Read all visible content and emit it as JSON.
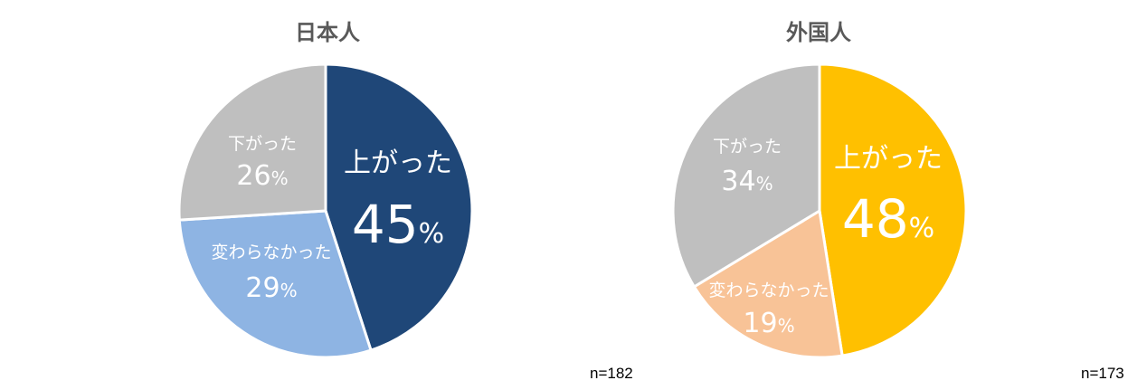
{
  "chart_data": [
    {
      "type": "pie",
      "title": "日本人",
      "n_label": "n=182",
      "slices": [
        {
          "label": "上がった",
          "value": 45,
          "color": "#1F4778"
        },
        {
          "label": "変わらなかった",
          "value": 29,
          "color": "#8EB4E3"
        },
        {
          "label": "下がった",
          "value": 26,
          "color": "#BFBFBF"
        }
      ]
    },
    {
      "type": "pie",
      "title": "外国人",
      "n_label": "n=173",
      "slices": [
        {
          "label": "上がった",
          "value": 48,
          "color": "#FFC000"
        },
        {
          "label": "変わらなかった",
          "value": 19,
          "color": "#F8C397"
        },
        {
          "label": "下がった",
          "value": 34,
          "color": "#BFBFBF"
        }
      ]
    }
  ],
  "percent_sign": "%"
}
